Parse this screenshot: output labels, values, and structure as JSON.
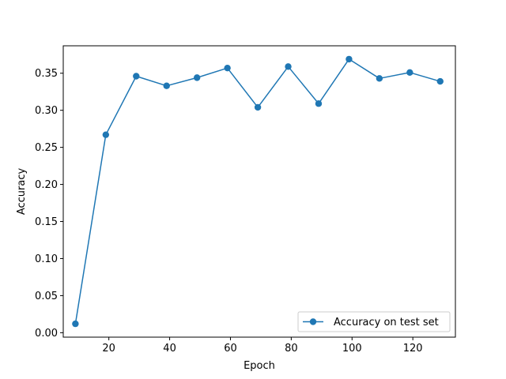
{
  "chart_data": {
    "type": "line",
    "title": "",
    "xlabel": "Epoch",
    "ylabel": "Accuracy",
    "xlim": [
      5,
      134
    ],
    "ylim": [
      -0.006,
      0.387
    ],
    "xticks": [
      20,
      40,
      60,
      80,
      100,
      120
    ],
    "yticks": [
      0.0,
      0.05,
      0.1,
      0.15,
      0.2,
      0.25,
      0.3,
      0.35
    ],
    "xtick_labels": [
      "20",
      "40",
      "60",
      "80",
      "100",
      "120"
    ],
    "ytick_labels": [
      "0.00",
      "0.05",
      "0.10",
      "0.15",
      "0.20",
      "0.25",
      "0.30",
      "0.35"
    ],
    "grid": false,
    "legend_position": "lower-right",
    "series": [
      {
        "name": "Accuracy on test set",
        "color": "#1f77b4",
        "marker": "circle",
        "x": [
          9,
          19,
          29,
          39,
          49,
          59,
          69,
          79,
          89,
          99,
          109,
          119,
          129
        ],
        "y": [
          0.012,
          0.267,
          0.346,
          0.333,
          0.344,
          0.357,
          0.304,
          0.359,
          0.309,
          0.369,
          0.343,
          0.351,
          0.339
        ]
      }
    ]
  }
}
